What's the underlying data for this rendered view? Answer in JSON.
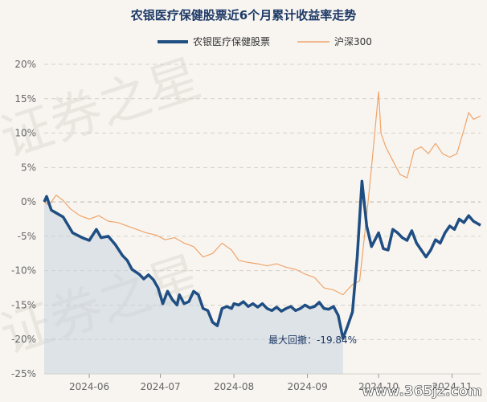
{
  "chart_data": {
    "type": "line",
    "title": "农银医疗保健股票近6个月累计收益率走势",
    "legend_position": "top",
    "grid": true,
    "ylim": [
      -25,
      20
    ],
    "y_ticks": [
      20,
      15,
      10,
      5,
      0,
      -5,
      -10,
      -15,
      -20,
      -25
    ],
    "y_tick_labels": [
      "20%",
      "15%",
      "10%",
      "5%",
      "0%",
      "-5%",
      "-10%",
      "-15%",
      "-20%",
      "-25%"
    ],
    "x_tick_labels": [
      "2024-06",
      "2024-07",
      "2024-08",
      "2024-09",
      "2024-10",
      "2024-11"
    ],
    "x_range": [
      "2024-05-13",
      "2024-11-13"
    ],
    "series": [
      {
        "name": "农银医疗保健股票",
        "color": "#1f4e82",
        "x": [
          "2024-05-13",
          "2024-05-14",
          "2024-05-16",
          "2024-05-18",
          "2024-05-21",
          "2024-05-25",
          "2024-05-29",
          "2024-06-01",
          "2024-06-04",
          "2024-06-06",
          "2024-06-09",
          "2024-06-12",
          "2024-06-15",
          "2024-06-17",
          "2024-06-19",
          "2024-06-22",
          "2024-06-24",
          "2024-06-26",
          "2024-06-28",
          "2024-06-30",
          "2024-07-02",
          "2024-07-04",
          "2024-07-06",
          "2024-07-08",
          "2024-07-09",
          "2024-07-11",
          "2024-07-13",
          "2024-07-15",
          "2024-07-17",
          "2024-07-19",
          "2024-07-21",
          "2024-07-23",
          "2024-07-25",
          "2024-07-27",
          "2024-07-29",
          "2024-07-31",
          "2024-08-01",
          "2024-08-03",
          "2024-08-05",
          "2024-08-07",
          "2024-08-09",
          "2024-08-11",
          "2024-08-13",
          "2024-08-15",
          "2024-08-17",
          "2024-08-19",
          "2024-08-21",
          "2024-08-23",
          "2024-08-25",
          "2024-08-27",
          "2024-08-29",
          "2024-08-31",
          "2024-09-02",
          "2024-09-04",
          "2024-09-06",
          "2024-09-08",
          "2024-09-10",
          "2024-09-12",
          "2024-09-14",
          "2024-09-16",
          "2024-09-18",
          "2024-09-20",
          "2024-09-22",
          "2024-09-24",
          "2024-09-26",
          "2024-09-28",
          "2024-10-01",
          "2024-10-03",
          "2024-10-05",
          "2024-10-07",
          "2024-10-09",
          "2024-10-11",
          "2024-10-13",
          "2024-10-15",
          "2024-10-17",
          "2024-10-19",
          "2024-10-21",
          "2024-10-23",
          "2024-10-25",
          "2024-10-27",
          "2024-10-29",
          "2024-10-31",
          "2024-11-02",
          "2024-11-04",
          "2024-11-06",
          "2024-11-08",
          "2024-11-10",
          "2024-11-12",
          "2024-11-13"
        ],
        "values": [
          0,
          0.8,
          -1.2,
          -1.6,
          -2.2,
          -4.5,
          -5.2,
          -5.6,
          -4.0,
          -5.2,
          -5.0,
          -6.2,
          -7.8,
          -8.5,
          -9.8,
          -10.5,
          -11.2,
          -10.6,
          -11.3,
          -12.5,
          -14.8,
          -13.0,
          -14.2,
          -15.0,
          -13.5,
          -14.8,
          -14.5,
          -13.0,
          -13.5,
          -15.5,
          -15.8,
          -17.5,
          -18.0,
          -15.5,
          -15.2,
          -15.5,
          -14.8,
          -15.0,
          -14.5,
          -15.2,
          -14.8,
          -15.3,
          -14.8,
          -15.5,
          -15.8,
          -15.3,
          -15.9,
          -15.5,
          -15.2,
          -15.8,
          -15.5,
          -15.0,
          -15.4,
          -15.2,
          -14.6,
          -15.5,
          -15.6,
          -15.2,
          -16.5,
          -19.84,
          -18.0,
          -16.0,
          -8.0,
          3.0,
          -3.5,
          -6.5,
          -4.5,
          -6.8,
          -7.0,
          -4.0,
          -4.5,
          -5.2,
          -5.6,
          -4.2,
          -6.0,
          -7.0,
          -8.0,
          -7.0,
          -5.5,
          -6.0,
          -4.5,
          -3.5,
          -4.0,
          -2.5,
          -3.0,
          -2.0,
          -2.8,
          -3.2,
          -3.4
        ]
      },
      {
        "name": "沪深300",
        "color": "#f0a46a",
        "x": [
          "2024-05-13",
          "2024-05-15",
          "2024-05-18",
          "2024-05-21",
          "2024-05-24",
          "2024-05-28",
          "2024-06-01",
          "2024-06-05",
          "2024-06-09",
          "2024-06-13",
          "2024-06-17",
          "2024-06-21",
          "2024-06-25",
          "2024-06-29",
          "2024-07-03",
          "2024-07-07",
          "2024-07-11",
          "2024-07-15",
          "2024-07-19",
          "2024-07-23",
          "2024-07-27",
          "2024-07-31",
          "2024-08-03",
          "2024-08-07",
          "2024-08-11",
          "2024-08-15",
          "2024-08-19",
          "2024-08-23",
          "2024-08-27",
          "2024-08-31",
          "2024-09-04",
          "2024-09-08",
          "2024-09-12",
          "2024-09-16",
          "2024-09-20",
          "2024-09-23",
          "2024-09-26",
          "2024-09-28",
          "2024-10-01",
          "2024-10-02",
          "2024-10-04",
          "2024-10-07",
          "2024-10-10",
          "2024-10-13",
          "2024-10-16",
          "2024-10-19",
          "2024-10-22",
          "2024-10-25",
          "2024-10-28",
          "2024-10-31",
          "2024-11-03",
          "2024-11-06",
          "2024-11-08",
          "2024-11-10",
          "2024-11-13"
        ],
        "values": [
          0,
          -0.5,
          1.0,
          0.2,
          -1.0,
          -2.0,
          -2.5,
          -2.0,
          -2.8,
          -3.0,
          -3.5,
          -4.0,
          -4.5,
          -4.8,
          -5.5,
          -5.2,
          -6.0,
          -6.5,
          -8.0,
          -7.5,
          -6.0,
          -7.0,
          -8.5,
          -8.8,
          -9.0,
          -9.3,
          -9.0,
          -9.5,
          -9.8,
          -10.5,
          -11.0,
          -12.5,
          -12.8,
          -13.5,
          -12.0,
          -11.5,
          -2.0,
          5.0,
          16.0,
          10.0,
          8.0,
          6.0,
          4.0,
          3.5,
          7.5,
          8.0,
          7.0,
          8.5,
          7.0,
          6.5,
          7.0,
          10.5,
          13.0,
          12.0,
          12.5
        ]
      }
    ],
    "annotations": [
      {
        "text": "最大回撤：-19.84%",
        "x": "2024-09-16",
        "y": -19.84
      }
    ]
  },
  "watermark": {
    "text1": "证券之星",
    "text2": "证券之星",
    "site": "www.365jz.com"
  }
}
